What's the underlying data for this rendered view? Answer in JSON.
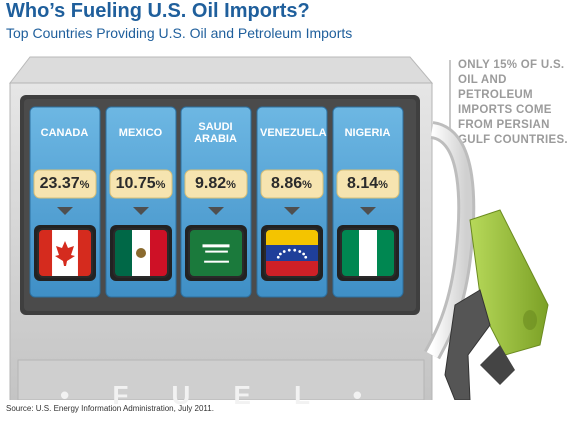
{
  "header": {
    "title": "Who’s Fueling U.S. Oil Imports?",
    "subtitle": "Top Countries Providing U.S. Oil and Petroleum Imports"
  },
  "note": "ONLY 15% OF U.S.\nOIL AND PETROLEUM\nIMPORTS COME\nFROM PERSIAN\nGULF COUNTRIES.",
  "pump_label": "• F U E L •",
  "source": "Source: U.S. Energy Information Administration, July 2011.",
  "countries": [
    {
      "name": "CANADA",
      "value": "23.37",
      "unit": "%",
      "flag": "canada-flag"
    },
    {
      "name": "MEXICO",
      "value": "10.75",
      "unit": "%",
      "flag": "mexico-flag"
    },
    {
      "name": "SAUDI\nARABIA",
      "value": "9.82",
      "unit": "%",
      "flag": "saudi-arabia-flag"
    },
    {
      "name": "VENEZUELA",
      "value": "8.86",
      "unit": "%",
      "flag": "venezuela-flag"
    },
    {
      "name": "NIGERIA",
      "value": "8.14",
      "unit": "%",
      "flag": "nigeria-flag"
    }
  ],
  "colors": {
    "title": "#1f5f9c",
    "card": "#5aa8d8",
    "pct_box": "#f6e4b0",
    "nozzle": "#9cc33b",
    "pump_body": "#d6d6d6"
  }
}
